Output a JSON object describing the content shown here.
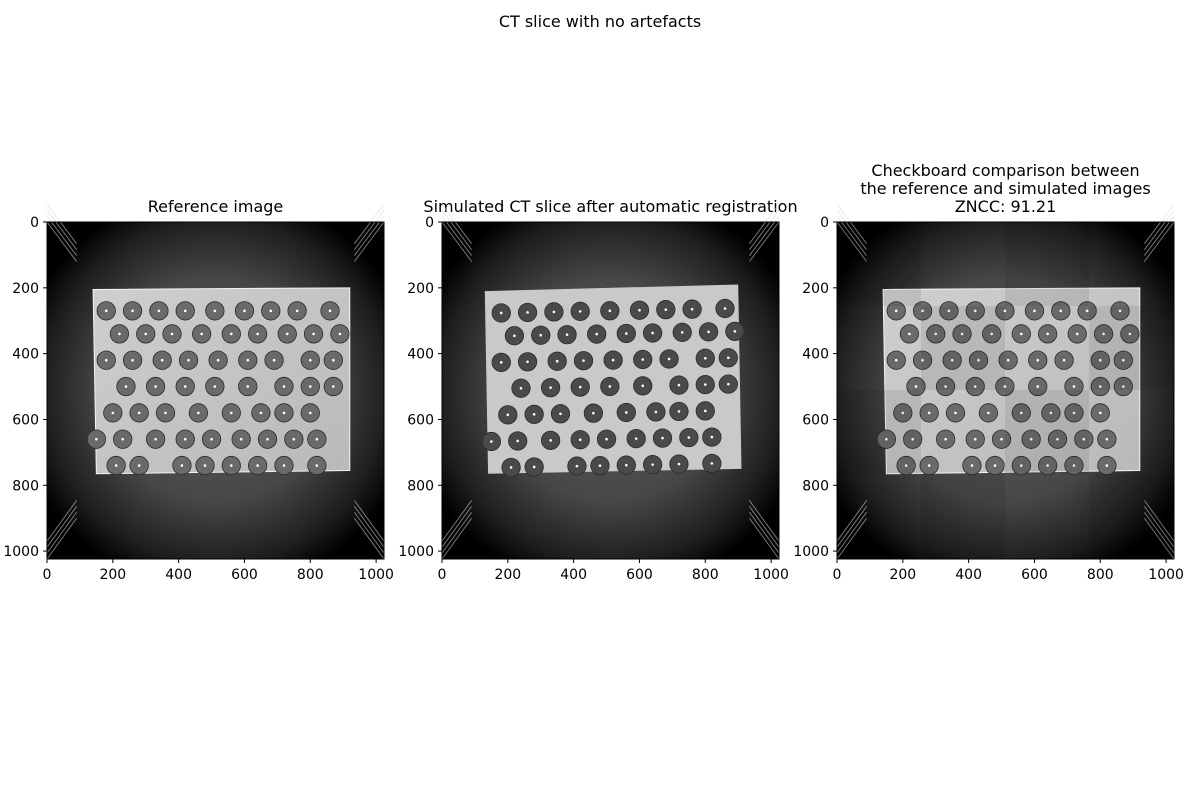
{
  "figure": {
    "suptitle": "CT slice with no artefacts"
  },
  "chart_data": [
    {
      "type": "image",
      "title": "Reference image",
      "xlim": [
        0,
        1024
      ],
      "ylim": [
        1024,
        0
      ],
      "xticks": [
        0,
        200,
        400,
        600,
        800,
        1000
      ],
      "yticks": [
        0,
        200,
        400,
        600,
        800,
        1000
      ],
      "image_description": "Grayscale CT slice of a flat sample with a grid of circular inclusions"
    },
    {
      "type": "image",
      "title": "Simulated CT slice after automatic registration",
      "xlim": [
        0,
        1024
      ],
      "ylim": [
        1024,
        0
      ],
      "xticks": [
        0,
        200,
        400,
        600,
        800,
        1000
      ],
      "yticks": [
        0,
        200,
        400,
        600,
        800,
        1000
      ],
      "image_description": "Simulated grayscale CT slice with dark circular inclusions"
    },
    {
      "type": "image",
      "title": "Checkboard comparison between\nthe reference and simulated images\nZNCC: 91.21",
      "xlim": [
        0,
        1024
      ],
      "ylim": [
        1024,
        0
      ],
      "xticks": [
        0,
        200,
        400,
        600,
        800,
        1000
      ],
      "yticks": [
        0,
        200,
        400,
        600,
        800,
        1000
      ],
      "image_description": "Checkerboard blend of reference and simulated slices"
    }
  ]
}
